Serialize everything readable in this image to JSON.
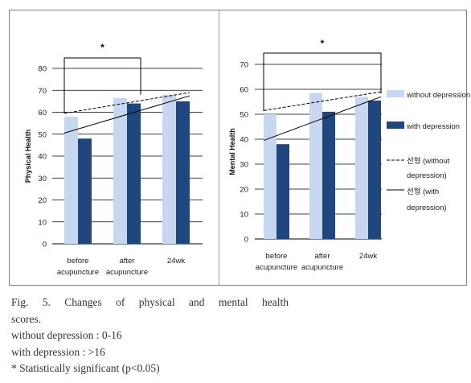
{
  "colors": {
    "without_depression": "#c6d7ef",
    "with_depression": "#1f477d",
    "gridline": "#000000",
    "trend_solid": "#000000",
    "trend_dashed": "#000000"
  },
  "legend": {
    "without_depression": "without depression",
    "with_depression": "with depression",
    "linear_without_line1": "선형 (without",
    "linear_without_line2": "depression)",
    "linear_with_line1": "선형 (with",
    "linear_with_line2": "depression)"
  },
  "caption": {
    "title_line1": "Fig.  5.  Changes  of  physical  and  mental  health",
    "title_line2": "scores.",
    "note1": "without depression : 0-16",
    "note2": "with depression : >16",
    "note3": "* Statistically significant (p<0.05)"
  },
  "chart_data": [
    {
      "type": "bar",
      "title": "",
      "xlabel": "",
      "ylabel": "Physical Health",
      "categories": [
        "before acupuncture",
        "after acupuncture",
        "24wk"
      ],
      "category_labels": [
        [
          "before",
          "acupuncture"
        ],
        [
          "after",
          "acupuncture"
        ],
        [
          "24wk"
        ]
      ],
      "yticks": [
        0,
        10,
        20,
        30,
        40,
        50,
        60,
        70,
        80
      ],
      "ylim": [
        0,
        80
      ],
      "grid": true,
      "series": [
        {
          "name": "without depression",
          "values": [
            58,
            66.5,
            68
          ]
        },
        {
          "name": "with depression",
          "values": [
            48,
            64,
            65
          ]
        }
      ],
      "trendlines": [
        {
          "name": "선형 (without depression)",
          "style": "dashed",
          "start": 59.5,
          "end": 69
        },
        {
          "name": "선형 (with depression)",
          "style": "solid",
          "start": 50.5,
          "end": 67.5
        }
      ],
      "significance": {
        "label": "*",
        "from": 0,
        "to": 1
      }
    },
    {
      "type": "bar",
      "title": "",
      "xlabel": "",
      "ylabel": "Mental Health",
      "categories": [
        "before acupuncture",
        "after acupuncture",
        "24wk"
      ],
      "category_labels": [
        [
          "before",
          "acupuncture"
        ],
        [
          "after",
          "acupuncture"
        ],
        [
          "24wk"
        ]
      ],
      "yticks": [
        0,
        10,
        20,
        30,
        40,
        50,
        60,
        70
      ],
      "ylim": [
        0,
        70
      ],
      "grid": true,
      "legend_position": "right",
      "series": [
        {
          "name": "without depression",
          "values": [
            50,
            58.5,
            57
          ]
        },
        {
          "name": "with depression",
          "values": [
            38,
            51,
            55.5
          ]
        }
      ],
      "trendlines": [
        {
          "name": "선형 (without depression)",
          "style": "dashed",
          "start": 51.5,
          "end": 59
        },
        {
          "name": "선형 (with depression)",
          "style": "solid",
          "start": 39.5,
          "end": 57
        }
      ],
      "significance": {
        "label": "*",
        "from": 0,
        "to": 2
      }
    }
  ]
}
